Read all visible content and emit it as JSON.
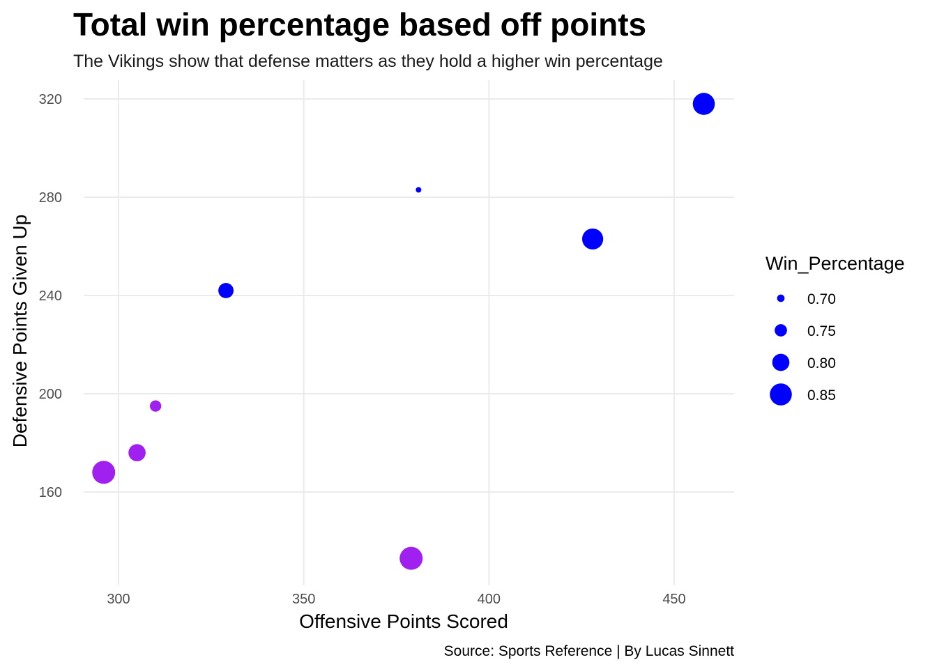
{
  "chart_data": {
    "type": "scatter",
    "title": "Total win percentage based off points",
    "subtitle": "The Vikings show that defense matters as they hold a higher win percentage",
    "xlabel": "Offensive Points Scored",
    "ylabel": "Defensive Points Given Up",
    "caption": "Source: Sports Reference | By Lucas Sinnett",
    "xlim": [
      287,
      1053
    ],
    "ylim": [
      126,
      327
    ],
    "x_ticks": [
      300,
      350,
      400,
      450
    ],
    "y_ticks": [
      160,
      200,
      240,
      280,
      320
    ],
    "x_tick_labels": [
      "300",
      "350",
      "400",
      "450"
    ],
    "y_tick_labels": [
      "160",
      "200",
      "240",
      "280",
      "320"
    ],
    "grid": true,
    "size_variable": "Win_Percentage",
    "colors": {
      "blue": "#0000ff",
      "purple": "#a020f0"
    },
    "points": [
      {
        "x": 296,
        "y": 168,
        "win_percentage": 0.86,
        "color": "#a020f0"
      },
      {
        "x": 305,
        "y": 176,
        "win_percentage": 0.8,
        "color": "#a020f0"
      },
      {
        "x": 310,
        "y": 195,
        "win_percentage": 0.74,
        "color": "#a020f0"
      },
      {
        "x": 329,
        "y": 242,
        "win_percentage": 0.78,
        "color": "#0000ff"
      },
      {
        "x": 379,
        "y": 133,
        "win_percentage": 0.86,
        "color": "#a020f0"
      },
      {
        "x": 381,
        "y": 283,
        "win_percentage": 0.68,
        "color": "#0000ff"
      },
      {
        "x": 428,
        "y": 263,
        "win_percentage": 0.84,
        "color": "#0000ff"
      },
      {
        "x": 458,
        "y": 318,
        "win_percentage": 0.85,
        "color": "#0000ff"
      }
    ],
    "legend": {
      "title": "Win_Percentage",
      "placement": "right",
      "entries": [
        {
          "label": "0.70",
          "value": 0.7
        },
        {
          "label": "0.75",
          "value": 0.75
        },
        {
          "label": "0.80",
          "value": 0.8
        },
        {
          "label": "0.85",
          "value": 0.85
        }
      ],
      "color": "#0000ff"
    }
  }
}
